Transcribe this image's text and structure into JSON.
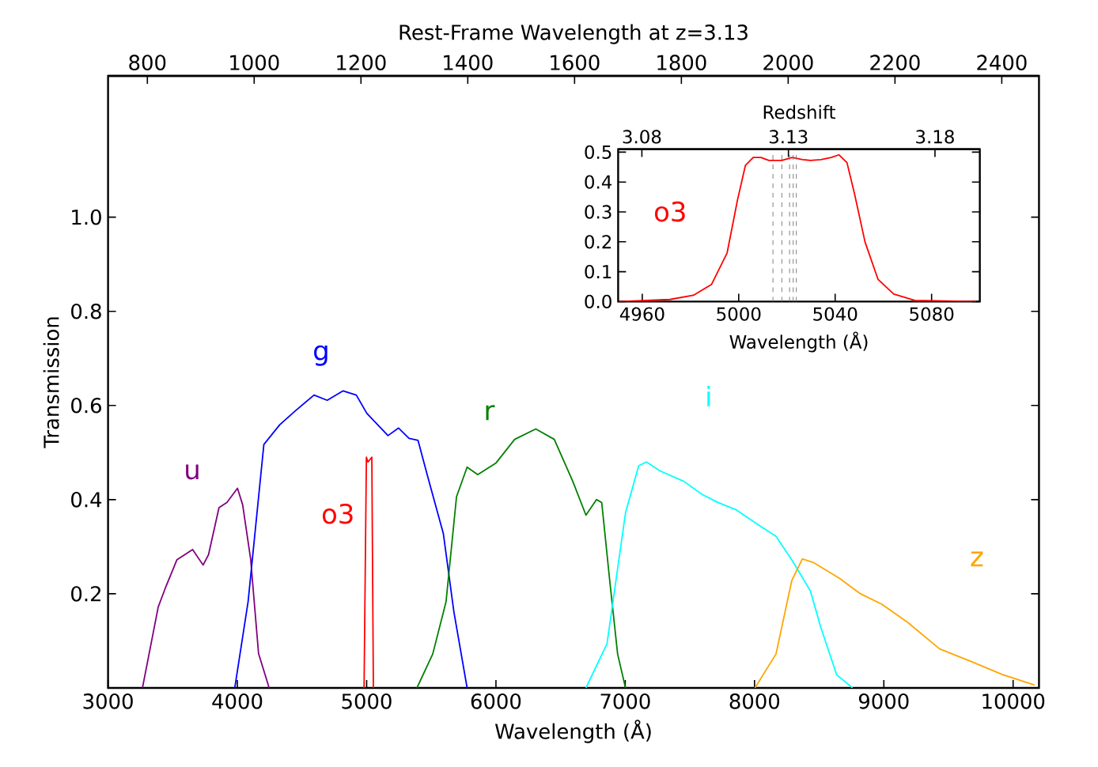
{
  "chart_data": [
    {
      "type": "line",
      "xlabel": "Wavelength (Å)",
      "ylabel": "Transmission",
      "x2label": "Rest-Frame Wavelength at z=3.13",
      "xlim": [
        3000,
        10200
      ],
      "ylim": [
        0,
        1.3
      ],
      "x2lim": [
        726.4,
        2469.7
      ],
      "xticks": [
        3000,
        4000,
        5000,
        6000,
        7000,
        8000,
        9000,
        10000
      ],
      "x2ticks": [
        800,
        1000,
        1200,
        1400,
        1600,
        1800,
        2000,
        2200,
        2400
      ],
      "yticks": [
        {
          "value": 0.2,
          "label": "0.2"
        },
        {
          "value": 0.4,
          "label": "0.4"
        },
        {
          "value": 0.6,
          "label": "0.6"
        },
        {
          "value": 0.8,
          "label": "0.8"
        },
        {
          "value": 1.0,
          "label": "1.0"
        }
      ],
      "line_style": "solid",
      "marker": "none",
      "series": [
        {
          "name": "u",
          "color": "#800080",
          "x": [
            3266,
            3388,
            3450,
            3532,
            3654,
            3735,
            3777,
            3858,
            3919,
            4001,
            4041,
            4103,
            4164,
            4246
          ],
          "values": [
            0,
            0.172,
            0.217,
            0.272,
            0.294,
            0.261,
            0.283,
            0.383,
            0.394,
            0.424,
            0.389,
            0.273,
            0.073,
            0
          ]
        },
        {
          "name": "g",
          "color": "#0000ff",
          "x": [
            3980,
            4083,
            4205,
            4328,
            4450,
            4593,
            4695,
            4818,
            4920,
            5002,
            5165,
            5247,
            5328,
            5397,
            5471,
            5593,
            5675,
            5777
          ],
          "values": [
            0,
            0.183,
            0.517,
            0.559,
            0.589,
            0.622,
            0.611,
            0.631,
            0.622,
            0.583,
            0.536,
            0.552,
            0.53,
            0.526,
            0.45,
            0.328,
            0.161,
            0
          ]
        },
        {
          "name": "o3",
          "color": "#ff0000",
          "x": [
            4980,
            4998,
            5010,
            5040,
            5052
          ],
          "values": [
            0,
            0.49,
            0.48,
            0.49,
            0
          ]
        },
        {
          "name": "r",
          "color": "#008000",
          "x": [
            5389,
            5511,
            5614,
            5695,
            5777,
            5859,
            6001,
            6145,
            6308,
            6451,
            6594,
            6696,
            6778,
            6818,
            6880,
            6941,
            7002
          ],
          "values": [
            0,
            0.072,
            0.183,
            0.406,
            0.469,
            0.453,
            0.478,
            0.528,
            0.55,
            0.528,
            0.439,
            0.367,
            0.4,
            0.394,
            0.228,
            0.072,
            0
          ]
        },
        {
          "name": "i",
          "color": "#00ffff",
          "x": [
            6696,
            6859,
            7002,
            7104,
            7165,
            7268,
            7452,
            7594,
            7716,
            7860,
            8043,
            8166,
            8288,
            8432,
            8513,
            8635,
            8758
          ],
          "values": [
            0,
            0.094,
            0.372,
            0.472,
            0.48,
            0.461,
            0.439,
            0.411,
            0.394,
            0.378,
            0.344,
            0.322,
            0.272,
            0.206,
            0.128,
            0.028,
            0
          ]
        },
        {
          "name": "z",
          "color": "#ffa500",
          "x": [
            8003,
            8166,
            8288,
            8370,
            8451,
            8656,
            8819,
            8983,
            9186,
            9431,
            9676,
            9921,
            10166
          ],
          "values": [
            0,
            0.072,
            0.228,
            0.274,
            0.267,
            0.233,
            0.2,
            0.178,
            0.139,
            0.083,
            0.056,
            0.028,
            0.006
          ]
        }
      ]
    },
    {
      "type": "line",
      "xlabel": "Wavelength (Å)",
      "x2label": "Redshift",
      "xlim": [
        4950,
        5100
      ],
      "ylim": [
        0,
        0.51
      ],
      "x2lim": [
        3.0719,
        3.1953
      ],
      "xticks": [
        4960,
        5000,
        5040,
        5080
      ],
      "x2ticks": [
        3.08,
        3.13,
        3.18
      ],
      "yticks": [
        {
          "value": 0,
          "label": "0.0"
        },
        {
          "value": 0.1,
          "label": "0.1"
        },
        {
          "value": 0.2,
          "label": "0.2"
        },
        {
          "value": 0.3,
          "label": "0.3"
        },
        {
          "value": 0.4,
          "label": "0.4"
        },
        {
          "value": 0.5,
          "label": "0.5"
        }
      ],
      "line_style": "solid",
      "marker": "none",
      "series": [
        {
          "name": "o3",
          "color": "#ff0000",
          "x": [
            4950.3,
            4971.4,
            4981.2,
            4988.7,
            4995.2,
            4999.5,
            5002.8,
            5006,
            5009.2,
            5012.5,
            5017.9,
            5022.2,
            5026.5,
            5029.8,
            5034.1,
            5038.4,
            5041.6,
            5044.9,
            5048.1,
            5052.4,
            5057.8,
            5064.3,
            5073,
            5098.4
          ],
          "values": [
            0,
            0.007,
            0.021,
            0.057,
            0.163,
            0.34,
            0.456,
            0.482,
            0.482,
            0.472,
            0.472,
            0.482,
            0.475,
            0.472,
            0.475,
            0.482,
            0.491,
            0.465,
            0.358,
            0.199,
            0.074,
            0.025,
            0.004,
            0
          ]
        }
      ],
      "ref_lines": [
        {
          "axis": "x",
          "value": 5014.2,
          "color": "#808080",
          "line_style": "dashed"
        },
        {
          "axis": "x",
          "value": 5017.9,
          "color": "#808080",
          "line_style": "dashed"
        },
        {
          "axis": "x",
          "value": 5021.1,
          "color": "#808080",
          "line_style": "dashed"
        },
        {
          "axis": "x",
          "value": 5022.6,
          "color": "#808080",
          "line_style": "dashed"
        },
        {
          "axis": "x",
          "value": 5023.9,
          "color": "#808080",
          "line_style": "dashed"
        }
      ]
    }
  ]
}
